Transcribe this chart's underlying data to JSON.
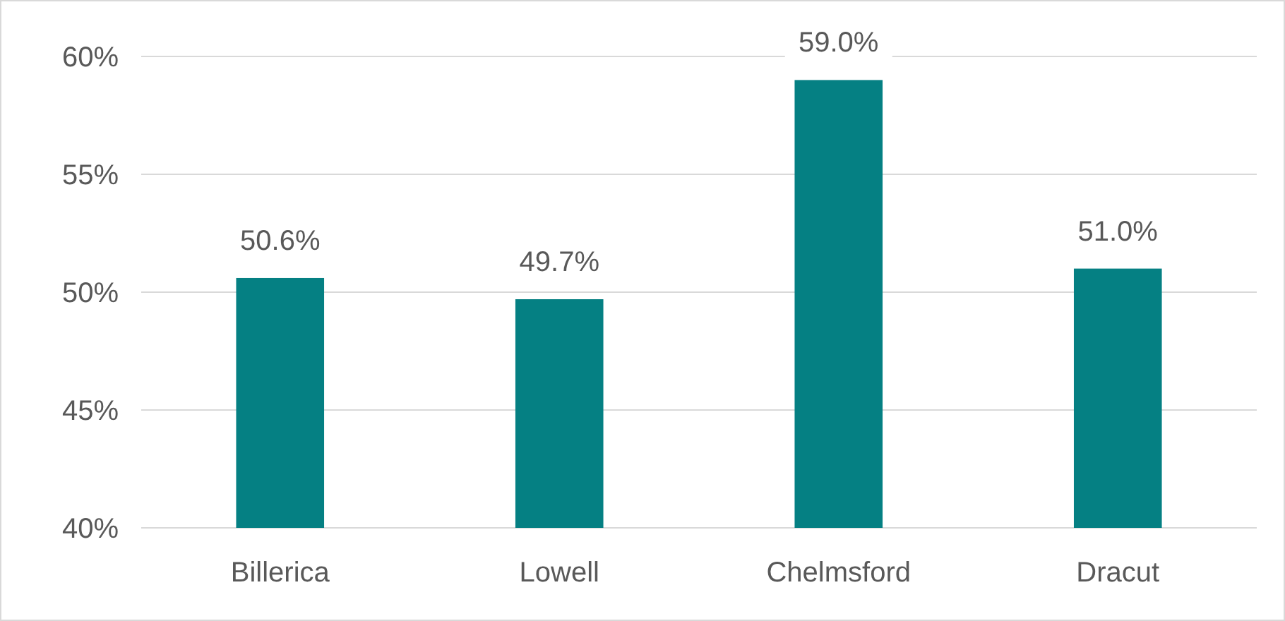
{
  "chart_data": {
    "type": "bar",
    "categories": [
      "Billerica",
      "Lowell",
      "Chelmsford",
      "Dracut"
    ],
    "values": [
      50.6,
      49.7,
      59.0,
      51.0
    ],
    "value_labels": [
      "50.6%",
      "49.7%",
      "59.0%",
      "51.0%"
    ],
    "color": "#058083",
    "ylim": [
      40,
      60
    ],
    "yticks": [
      {
        "value": 40,
        "label": "40%"
      },
      {
        "value": 45,
        "label": "45%"
      },
      {
        "value": 50,
        "label": "50%"
      },
      {
        "value": 55,
        "label": "55%"
      },
      {
        "value": 60,
        "label": "60%"
      }
    ],
    "grid": "y"
  }
}
